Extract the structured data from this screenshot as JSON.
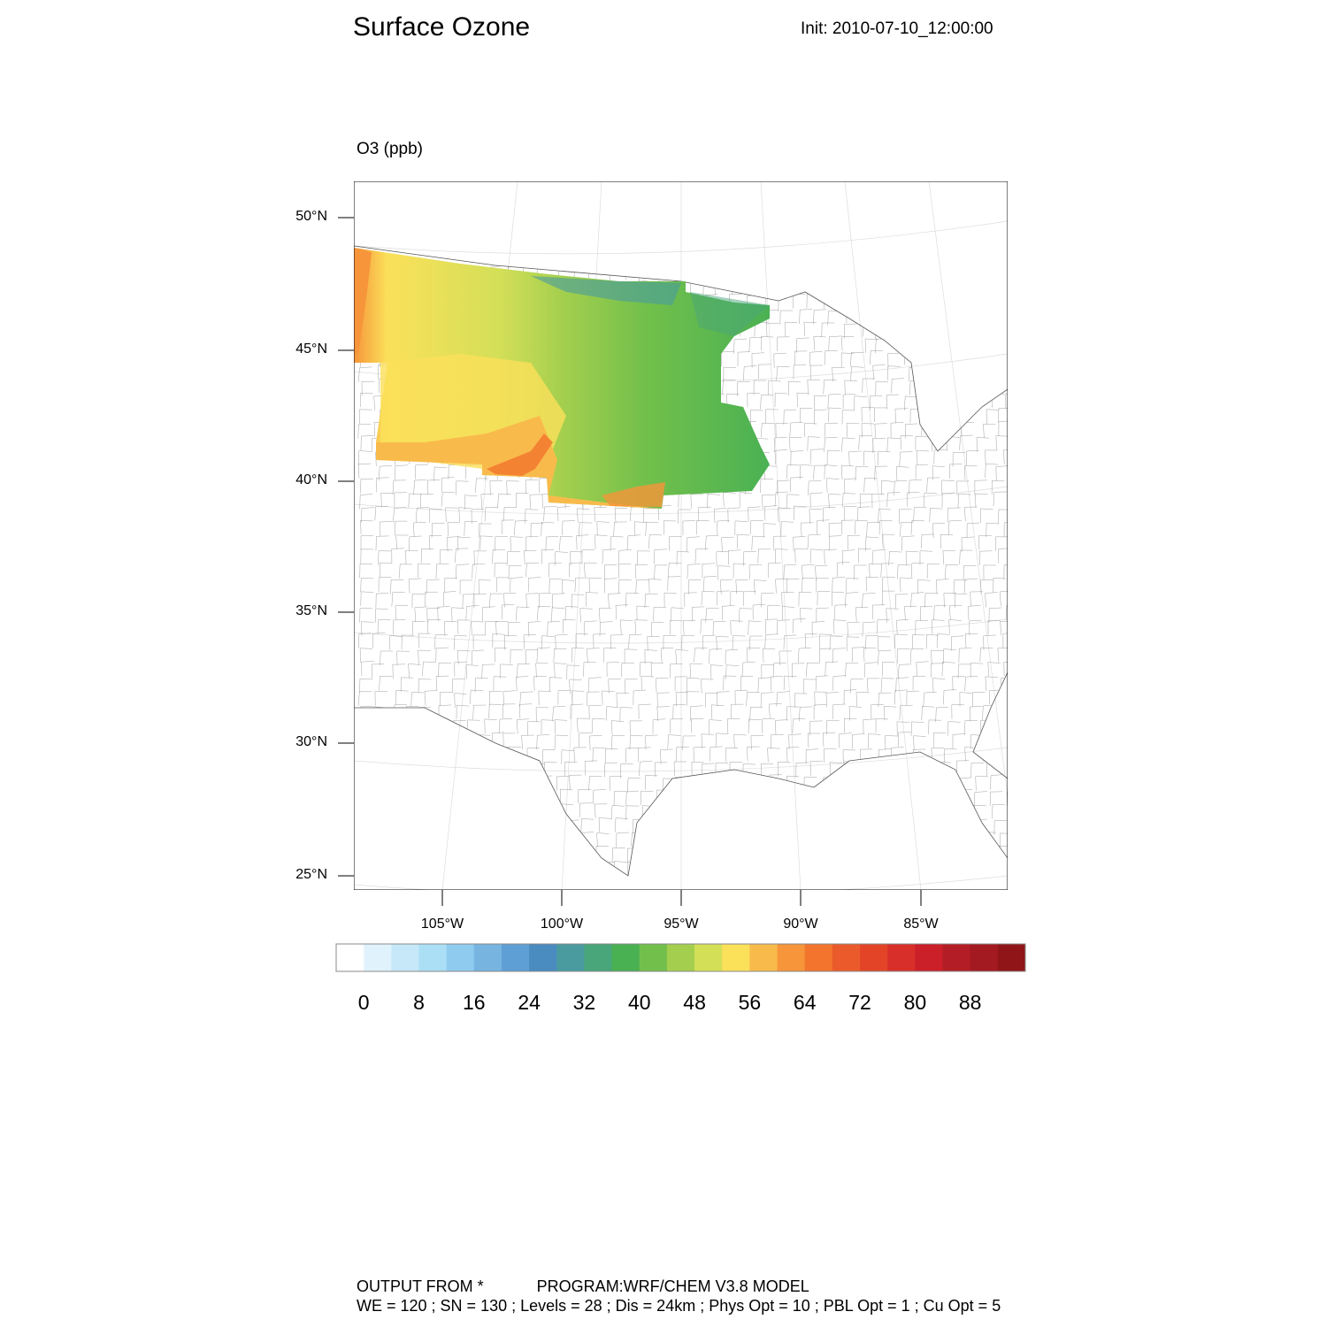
{
  "title": "Surface Ozone",
  "init": "Init: 2010-07-10_12:00:00",
  "variable_label": "O3 (ppb)",
  "map": {
    "lat_labels": [
      "50°N",
      "45°N",
      "40°N",
      "35°N",
      "30°N",
      "25°N"
    ],
    "lon_labels": [
      "105°W",
      "100°W",
      "95°W",
      "90°W",
      "85°W"
    ],
    "boundaries": "US state and county outlines"
  },
  "colorbar": {
    "labels": [
      "0",
      "8",
      "16",
      "24",
      "32",
      "40",
      "48",
      "56",
      "64",
      "72",
      "80",
      "88"
    ],
    "colors": [
      "#ffffff",
      "#e0f3fc",
      "#c6e8f8",
      "#abdff6",
      "#8fcbef",
      "#77b5e0",
      "#5e9fd5",
      "#4a8bc0",
      "#4a9ba0",
      "#49a67a",
      "#4ab153",
      "#72c04b",
      "#a4cf4e",
      "#d4df58",
      "#fbe05a",
      "#f8bb4b",
      "#f6953a",
      "#f2742d",
      "#ea5a2a",
      "#e34428",
      "#d92f2a",
      "#cb1f29",
      "#b31d25",
      "#a31a20",
      "#8f1519"
    ]
  },
  "footer": {
    "line1": "OUTPUT FROM *            PROGRAM:WRF/CHEM V3.8 MODEL",
    "line2": "WE = 120 ; SN = 130 ; Levels = 28 ; Dis = 24km ; Phys Opt = 10 ; PBL Opt = 1 ; Cu Opt = 5"
  }
}
